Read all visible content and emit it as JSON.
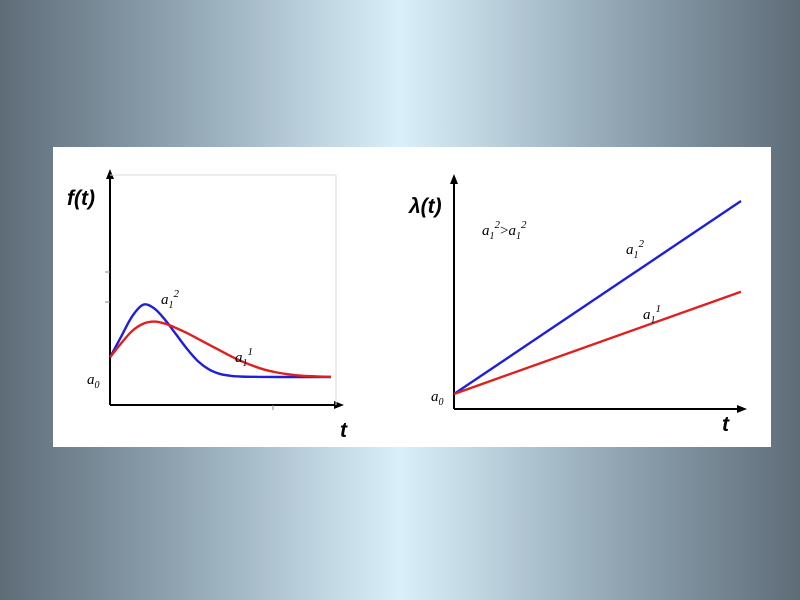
{
  "chart_data": [
    {
      "type": "line",
      "ylabel": "f(t)",
      "xlabel": "t",
      "origin_label": "a0",
      "series": [
        {
          "name": "a1^2",
          "color": "#1f1fd8",
          "x": [
            0,
            0.05,
            0.1,
            0.15,
            0.2,
            0.25,
            0.3,
            0.35,
            0.4,
            0.45,
            0.5,
            0.55,
            0.6,
            0.65,
            0.7,
            0.75,
            0.8,
            0.85,
            0.9,
            0.95,
            1.0
          ],
          "y": [
            0.27,
            0.55,
            0.83,
            0.99,
            0.94,
            0.78,
            0.58,
            0.38,
            0.21,
            0.1,
            0.04,
            0.015,
            0.005,
            0.002,
            0.001,
            0,
            0,
            0,
            0,
            0,
            0
          ]
        },
        {
          "name": "a1^1",
          "color": "#e01f1f",
          "x": [
            0,
            0.05,
            0.1,
            0.15,
            0.2,
            0.25,
            0.3,
            0.35,
            0.4,
            0.45,
            0.5,
            0.55,
            0.6,
            0.65,
            0.7,
            0.75,
            0.8,
            0.85,
            0.9,
            0.95,
            1.0
          ],
          "y": [
            0.27,
            0.46,
            0.63,
            0.73,
            0.76,
            0.73,
            0.67,
            0.6,
            0.52,
            0.44,
            0.36,
            0.28,
            0.21,
            0.15,
            0.1,
            0.065,
            0.04,
            0.022,
            0.012,
            0.005,
            0.002
          ]
        }
      ],
      "series_labels": [
        {
          "base": "a",
          "sub": "1",
          "sup": "2"
        },
        {
          "base": "a",
          "sub": "1",
          "sup": "1"
        }
      ],
      "grid": false
    },
    {
      "type": "line",
      "ylabel": "λ(t)",
      "xlabel": "t",
      "origin_label": "a0",
      "annotation": {
        "left": {
          "base": "a",
          "sub": "1",
          "sup": "2"
        },
        "op": ">",
        "right": {
          "base": "a",
          "sub": "1",
          "sup": "2"
        }
      },
      "series": [
        {
          "name": "a1^2",
          "color": "#1f1fd8",
          "x": [
            0,
            1
          ],
          "y": [
            0,
            1.0
          ]
        },
        {
          "name": "a1^1",
          "color": "#e01f1f",
          "x": [
            0,
            1
          ],
          "y": [
            0,
            0.53
          ]
        }
      ],
      "series_labels": [
        {
          "base": "a",
          "sub": "1",
          "sup": "2"
        },
        {
          "base": "a",
          "sub": "1",
          "sup": "1"
        }
      ],
      "grid": false
    }
  ]
}
